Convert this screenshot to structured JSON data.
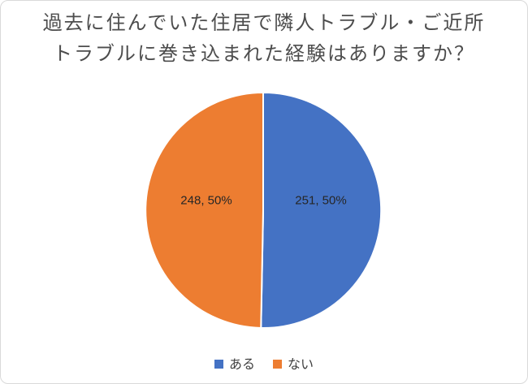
{
  "frame": {
    "background": "#ffffff",
    "border_color": "#d9d9d9"
  },
  "chart_data": {
    "type": "pie",
    "title": "過去に住んでいた住居で隣人トラブル・ご近所トラブルに巻き込まれた経験はありますか？",
    "title_lines": [
      "過去に住んでいた住居で隣人トラブル・ご近所",
      "トラブルに巻き込まれた経験はありますか？"
    ],
    "categories": [
      "ある",
      "ない"
    ],
    "values": [
      251,
      248
    ],
    "percentages": [
      50,
      50
    ],
    "data_labels": [
      "251, 50%",
      "248, 50%"
    ],
    "colors": [
      "#4472c4",
      "#ed7d31"
    ],
    "slice_border_color": "#ffffff",
    "legend_position": "bottom",
    "start_angle_deg": 0,
    "direction": "clockwise",
    "title_color": "#4d4d4d",
    "label_color": "#262626"
  }
}
